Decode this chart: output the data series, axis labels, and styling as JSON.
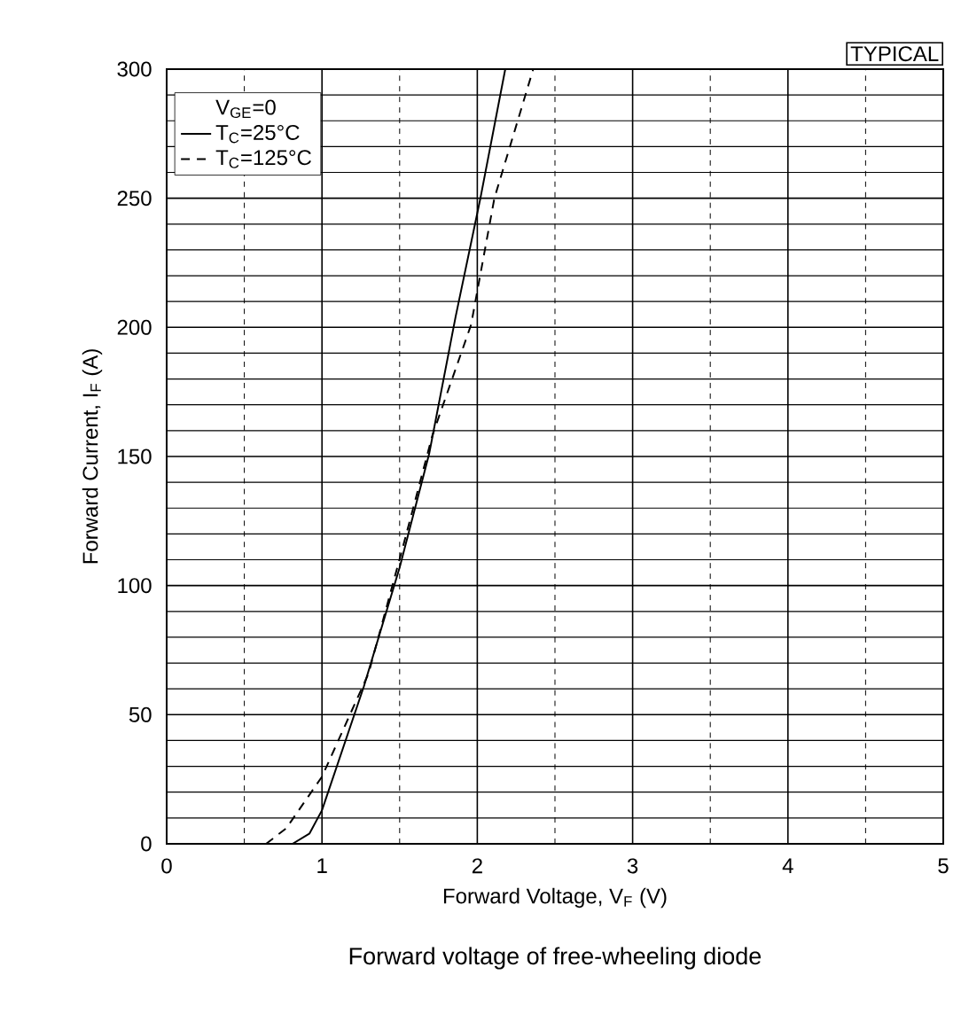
{
  "chart_data": {
    "type": "line",
    "xlabel": "Forward Voltage, V$_{F}$ (V)",
    "ylabel": "Forward Current, I$_{F}$ (A)",
    "legend_title": "V$_{GE}$=0",
    "annotations": [
      "TYPICAL",
      "Forward voltage of free-wheeling diode"
    ],
    "xlim": [
      0,
      5
    ],
    "ylim": [
      0,
      300
    ],
    "xticks": [
      0,
      1,
      2,
      3,
      4,
      5
    ],
    "yticks": [
      0,
      50,
      100,
      150,
      200,
      250,
      300
    ],
    "grid": true,
    "legend": "top left",
    "marker": "none",
    "series": [
      {
        "name": "T$_{C}$=25°C",
        "color": "#000000",
        "line_style": "solid",
        "x": [
          0.81,
          0.92,
          1.0,
          1.27,
          1.5,
          1.69,
          1.86,
          2.02,
          2.18
        ],
        "values": [
          0,
          4,
          13,
          61,
          107,
          151,
          204,
          250,
          300
        ]
      },
      {
        "name": "T$_{C}$=125°C",
        "color": "#000000",
        "line_style": "dashed",
        "x": [
          0.64,
          0.77,
          1.0,
          1.3,
          1.53,
          1.71,
          1.96,
          2.11,
          2.36
        ],
        "values": [
          0,
          6,
          26,
          66,
          117,
          158,
          201,
          250,
          300
        ]
      }
    ]
  }
}
